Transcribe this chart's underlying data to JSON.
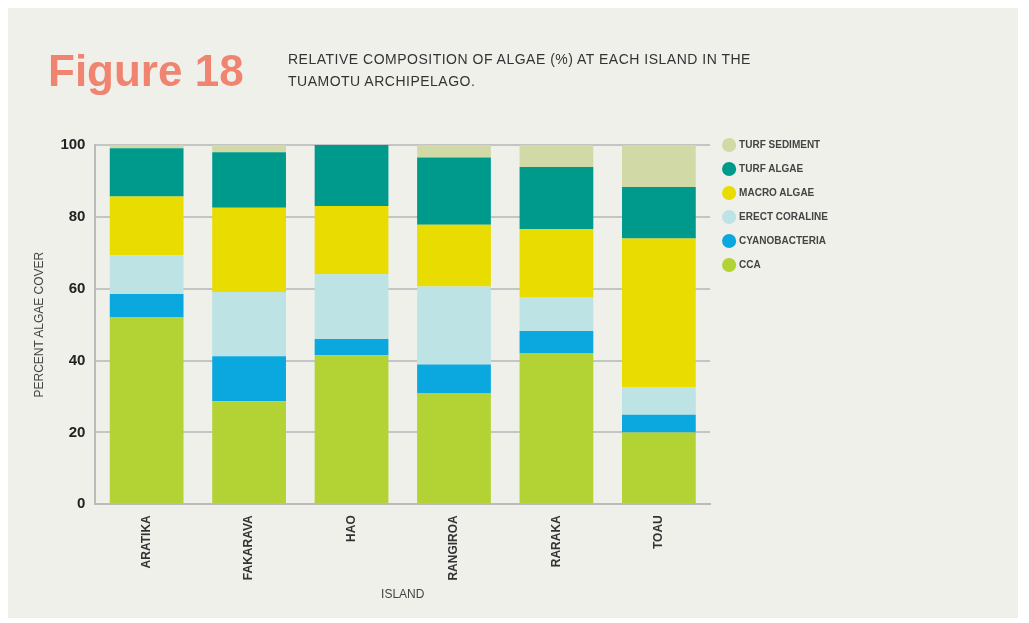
{
  "chart_data": {
    "type": "bar",
    "title": "Figure 18",
    "subtitle": "RELATIVE COMPOSITION OF ALGAE (%) AT EACH ISLAND IN THE TUAMOTU ARCHIPELAGO.",
    "xlabel": "ISLAND",
    "ylabel": "PERCENT ALGAE COVER",
    "categories": [
      "ARATIKA",
      "FAKARAVA",
      "HAO",
      "RANGIROA",
      "RARAKA",
      "TOAU"
    ],
    "stacked": true,
    "ylim": [
      0,
      100
    ],
    "yticks": [
      0,
      20,
      40,
      60,
      80,
      100
    ],
    "grid": "y",
    "legend": "right",
    "marker": "circle",
    "series": [
      {
        "name": "CCA",
        "color": "#b3d334",
        "values": [
          52,
          28.7,
          41.5,
          31,
          42.1,
          20
        ]
      },
      {
        "name": "CYANOBACTERIA",
        "color": "#0ba8df",
        "values": [
          6.5,
          12.5,
          4.5,
          7.9,
          6.1,
          4.9
        ]
      },
      {
        "name": "ERECT CORALINE",
        "color": "#bde3e5",
        "values": [
          10.8,
          17.9,
          18,
          21.7,
          9.5,
          7.6
        ]
      },
      {
        "name": "MACRO ALGAE",
        "color": "#e9dc00",
        "values": [
          16.4,
          23.4,
          19,
          17.2,
          18.9,
          41.5
        ]
      },
      {
        "name": "TURF ALGAE",
        "color": "#009a8d",
        "values": [
          13.4,
          15.5,
          17,
          18.7,
          17.3,
          14.3
        ]
      },
      {
        "name": "TURF SEDIMENT",
        "color": "#d1d9a7",
        "values": [
          0.9,
          2,
          0,
          3.5,
          6.1,
          11.7
        ]
      }
    ]
  }
}
